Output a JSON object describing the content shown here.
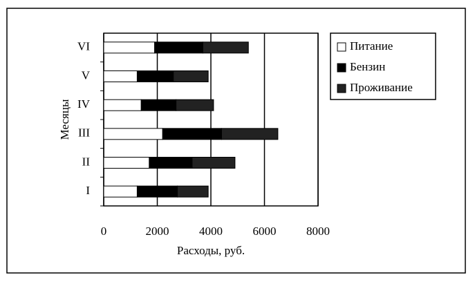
{
  "chart_data": {
    "type": "stacked-bar-horizontal",
    "x_label": "Расходы,  руб.",
    "y_label": "Месяцы",
    "categories": [
      "I",
      "II",
      "III",
      "IV",
      "V",
      "VI"
    ],
    "series": [
      {
        "name": "Питание",
        "color": "#ffffff",
        "values": [
          1250,
          1700,
          2200,
          1400,
          1250,
          1900
        ]
      },
      {
        "name": "Бензин",
        "color": "#000000",
        "values": [
          1500,
          1600,
          2200,
          1300,
          1350,
          1800
        ]
      },
      {
        "name": "Проживание",
        "color": "#222222",
        "values": [
          1150,
          1600,
          2100,
          1400,
          1300,
          1700
        ]
      }
    ],
    "xlim": [
      0,
      8000
    ],
    "xticks": [
      0,
      2000,
      4000,
      6000,
      8000
    ],
    "grid": true
  }
}
